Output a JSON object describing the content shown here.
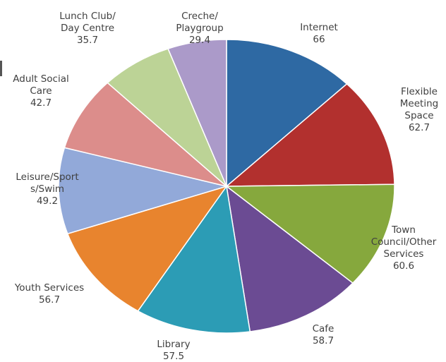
{
  "chart_data": {
    "type": "pie",
    "title": "",
    "slices": [
      {
        "name": "Internet",
        "label_lines": [
          "Internet"
        ],
        "value": 66,
        "value_text": "66",
        "color": "#2e69a3"
      },
      {
        "name": "Flexible Meeting Space",
        "label_lines": [
          "Flexible",
          "Meeting",
          "Space"
        ],
        "value": 62.7,
        "value_text": "62.7",
        "color": "#b2302e"
      },
      {
        "name": "Town Council/Other Services",
        "label_lines": [
          "Town",
          "Council/Other",
          "Services"
        ],
        "value": 60.6,
        "value_text": "60.6",
        "color": "#86a83d"
      },
      {
        "name": "Cafe",
        "label_lines": [
          "Cafe"
        ],
        "value": 58.7,
        "value_text": "58.7",
        "color": "#6b4b93"
      },
      {
        "name": "Library",
        "label_lines": [
          "Library"
        ],
        "value": 57.5,
        "value_text": "57.5",
        "color": "#2c9cb5"
      },
      {
        "name": "Youth Services",
        "label_lines": [
          "Youth Services"
        ],
        "value": 56.7,
        "value_text": "56.7",
        "color": "#e8842e"
      },
      {
        "name": "Leisure/Sports/Swim",
        "label_lines": [
          "Leisure/Sport",
          "s/Swim"
        ],
        "value": 49.2,
        "value_text": "49.2",
        "color": "#92a9d9"
      },
      {
        "name": "Adult Social Care",
        "label_lines": [
          "Adult Social",
          "Care"
        ],
        "value": 42.7,
        "value_text": "42.7",
        "color": "#dc8d8b"
      },
      {
        "name": "Lunch Club/Day Centre",
        "label_lines": [
          "Lunch Club/",
          "Day Centre"
        ],
        "value": 35.7,
        "value_text": "35.7",
        "color": "#bcd396"
      },
      {
        "name": "Creche/Playgroup",
        "label_lines": [
          "Creche/",
          "Playgroup"
        ],
        "value": 29.4,
        "value_text": "29.4",
        "color": "#ab9ac9"
      }
    ]
  }
}
